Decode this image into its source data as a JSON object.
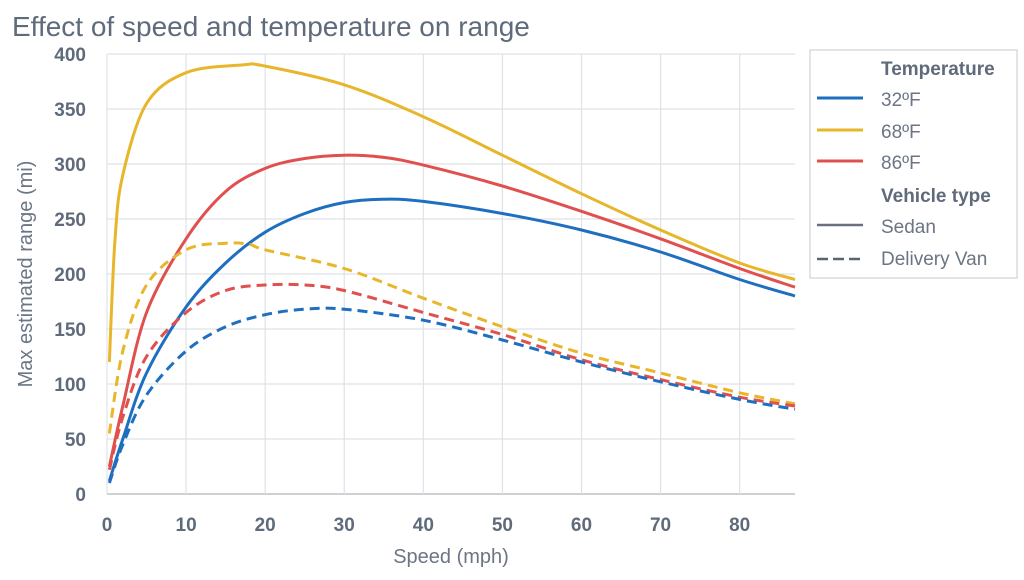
{
  "chart_data": {
    "type": "line",
    "title": "Effect of speed and temperature on range",
    "xlabel": "Speed (mph)",
    "ylabel": "Max estimated range (mi)",
    "xlim": [
      0,
      87
    ],
    "ylim": [
      0,
      400
    ],
    "xticks": [
      0,
      10,
      20,
      30,
      40,
      50,
      60,
      70,
      80
    ],
    "yticks": [
      0,
      50,
      100,
      150,
      200,
      250,
      300,
      350,
      400
    ],
    "grid": true,
    "legend_placement": "right",
    "legend": {
      "temperature_title": "Temperature",
      "vehicle_title": "Vehicle type",
      "temperatures": [
        {
          "label": "32ºF",
          "color": "#1f6fc0"
        },
        {
          "label": "68ºF",
          "color": "#e8b62a"
        },
        {
          "label": "86ºF",
          "color": "#e0504f"
        }
      ],
      "vehicles": [
        {
          "label": "Sedan",
          "style": "solid",
          "color": "#6b7080"
        },
        {
          "label": "Delivery Van",
          "style": "dashed",
          "color": "#5a6474"
        }
      ]
    },
    "series": [
      {
        "temperature": "68ºF",
        "vehicle": "Sedan",
        "color": "#e8b62a",
        "style": "solid",
        "x": [
          0.3,
          1,
          2,
          5,
          10,
          17,
          20,
          30,
          40,
          50,
          60,
          70,
          80,
          87
        ],
        "y": [
          120,
          230,
          290,
          355,
          383,
          390,
          389,
          372,
          343,
          308,
          273,
          240,
          210,
          195
        ]
      },
      {
        "temperature": "86ºF",
        "vehicle": "Sedan",
        "color": "#e0504f",
        "style": "solid",
        "x": [
          0.3,
          2,
          5,
          10,
          15,
          20,
          25,
          30,
          35,
          40,
          50,
          60,
          70,
          80,
          87
        ],
        "y": [
          25,
          80,
          165,
          232,
          275,
          296,
          305,
          308,
          306,
          299,
          280,
          257,
          232,
          205,
          188
        ]
      },
      {
        "temperature": "32ºF",
        "vehicle": "Sedan",
        "color": "#1f6fc0",
        "style": "solid",
        "x": [
          0.3,
          2,
          5,
          10,
          15,
          20,
          25,
          30,
          35,
          40,
          50,
          60,
          70,
          80,
          87
        ],
        "y": [
          12,
          50,
          110,
          170,
          210,
          238,
          255,
          265,
          268,
          266,
          255,
          240,
          220,
          195,
          180
        ]
      },
      {
        "temperature": "68ºF",
        "vehicle": "Delivery Van",
        "color": "#e8b62a",
        "style": "dashed",
        "x": [
          0.3,
          2,
          5,
          10,
          15,
          18,
          20,
          30,
          40,
          50,
          60,
          70,
          80,
          87
        ],
        "y": [
          55,
          130,
          190,
          222,
          228,
          227,
          222,
          205,
          178,
          152,
          128,
          110,
          92,
          82
        ]
      },
      {
        "temperature": "86ºF",
        "vehicle": "Delivery Van",
        "color": "#e0504f",
        "style": "dashed",
        "x": [
          0.3,
          2,
          5,
          10,
          15,
          20,
          25,
          30,
          40,
          50,
          60,
          70,
          80,
          87
        ],
        "y": [
          22,
          70,
          125,
          165,
          185,
          190,
          190,
          185,
          165,
          145,
          122,
          104,
          88,
          80
        ]
      },
      {
        "temperature": "32ºF",
        "vehicle": "Delivery Van",
        "color": "#1f6fc0",
        "style": "dashed",
        "x": [
          0.3,
          2,
          5,
          10,
          15,
          20,
          25,
          30,
          40,
          50,
          60,
          70,
          80,
          87
        ],
        "y": [
          10,
          45,
          90,
          130,
          152,
          163,
          168,
          168,
          158,
          140,
          120,
          102,
          86,
          77
        ]
      }
    ]
  }
}
